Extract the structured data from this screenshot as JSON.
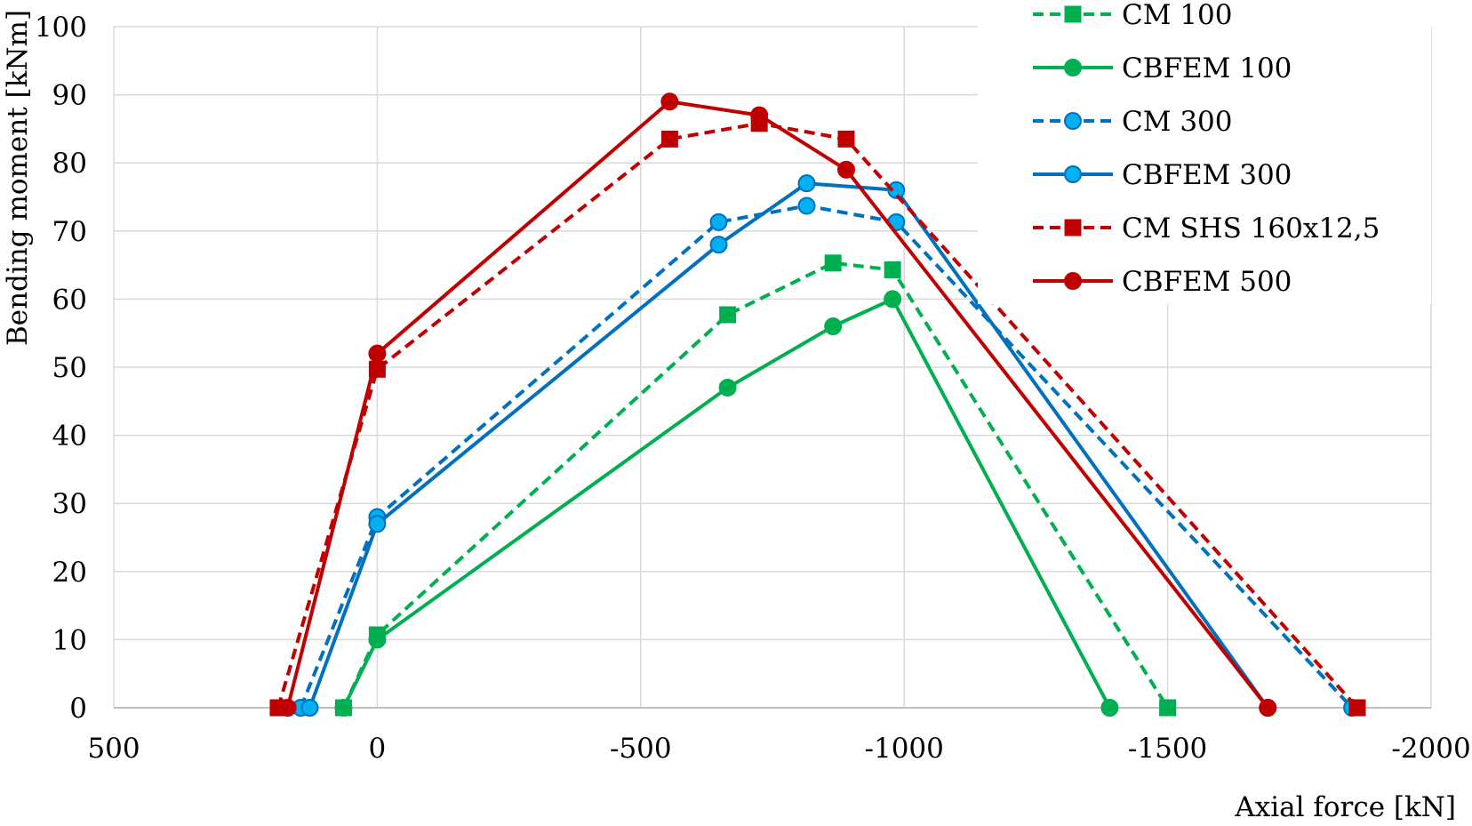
{
  "chart_data": {
    "type": "line",
    "title": "",
    "xlabel": "Axial force [kN]",
    "ylabel": "Bending moment [kNm]",
    "xlim": [
      500,
      -2000
    ],
    "ylim": [
      0,
      100
    ],
    "x_ticks": [
      500,
      0,
      -500,
      -1000,
      -1500,
      -2000
    ],
    "y_ticks": [
      0,
      10,
      20,
      30,
      40,
      50,
      60,
      70,
      80,
      90,
      100
    ],
    "x_tick_labels": [
      "500",
      "0",
      "-500",
      "-1000",
      "-1500",
      "-2000"
    ],
    "y_tick_labels": [
      "0",
      "10",
      "20",
      "30",
      "40",
      "50",
      "60",
      "70",
      "80",
      "90",
      "100"
    ],
    "grid": true,
    "legend_position": "top-right",
    "series": [
      {
        "name": "CM 100",
        "color": "#00b050",
        "dashed": true,
        "marker": "square",
        "points": [
          [
            64,
            0
          ],
          [
            0,
            10.7
          ],
          [
            -665,
            57.7
          ],
          [
            -865,
            65.3
          ],
          [
            -978,
            64.3
          ],
          [
            -1500,
            0
          ]
        ]
      },
      {
        "name": "CBFEM 100",
        "color": "#00b050",
        "dashed": false,
        "marker": "circle",
        "points": [
          [
            64,
            0
          ],
          [
            0,
            10
          ],
          [
            -665,
            47
          ],
          [
            -865,
            56
          ],
          [
            -978,
            60
          ],
          [
            -1390,
            0
          ]
        ]
      },
      {
        "name": "CM 300",
        "color": "#0070c0",
        "dashed": true,
        "marker": "circle",
        "points": [
          [
            145,
            0
          ],
          [
            0,
            28
          ],
          [
            -648,
            71.3
          ],
          [
            -815,
            73.7
          ],
          [
            -985,
            71.3
          ],
          [
            -1850,
            0
          ]
        ]
      },
      {
        "name": "CBFEM 300",
        "color": "#0070c0",
        "dashed": false,
        "marker": "circle",
        "points": [
          [
            128,
            0
          ],
          [
            0,
            27
          ],
          [
            -648,
            68
          ],
          [
            -815,
            77
          ],
          [
            -985,
            76
          ],
          [
            -1690,
            0
          ]
        ]
      },
      {
        "name": "CM SHS 160x12,5",
        "color": "#c00000",
        "dashed": true,
        "marker": "square",
        "points": [
          [
            188,
            0
          ],
          [
            0,
            49.7
          ],
          [
            -555,
            83.5
          ],
          [
            -725,
            85.8
          ],
          [
            -890,
            83.5
          ],
          [
            -1860,
            0
          ]
        ]
      },
      {
        "name": "CBFEM 500",
        "color": "#c00000",
        "dashed": false,
        "marker": "circle",
        "points": [
          [
            170,
            0
          ],
          [
            0,
            52
          ],
          [
            -555,
            89
          ],
          [
            -725,
            87
          ],
          [
            -890,
            79
          ],
          [
            -1690,
            0
          ]
        ]
      }
    ]
  }
}
